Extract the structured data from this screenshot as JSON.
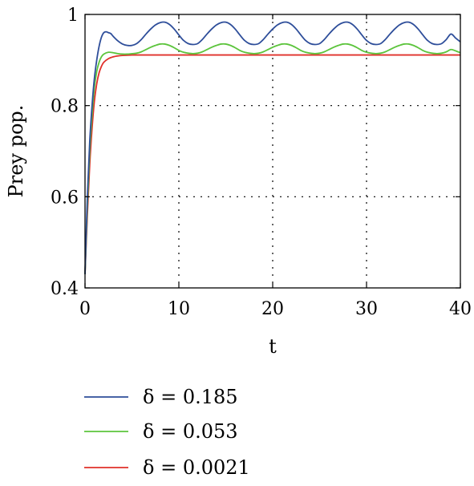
{
  "chart_data": {
    "type": "line",
    "xlabel": "t",
    "ylabel": "Prey pop.",
    "xlim": [
      0,
      40
    ],
    "ylim": [
      0.4,
      1.0
    ],
    "x_ticks": [
      0,
      10,
      20,
      30,
      40
    ],
    "y_ticks": [
      0.4,
      0.6,
      0.8,
      1.0
    ],
    "x_tick_labels": [
      "0",
      "10",
      "20",
      "30",
      "40"
    ],
    "y_tick_labels": [
      "0.4",
      "0.6",
      "0.8",
      "1"
    ],
    "grid": true,
    "legend_position": "bottom",
    "series": [
      {
        "name": "δ = 0.185",
        "color": "#2e4e9a",
        "x": [
          0,
          0.25,
          0.5,
          0.75,
          1.0,
          1.25,
          1.5,
          1.75,
          2.0,
          2.25,
          2.5,
          2.75,
          3.0,
          3.5,
          4.0,
          4.5,
          5.0,
          5.5,
          6.0,
          6.5,
          7.0,
          7.5,
          8.0,
          8.5,
          9.0,
          9.5,
          10.0,
          10.5,
          11.0,
          11.5,
          12.0,
          12.5,
          13.0,
          13.5,
          14.0,
          14.5,
          15.0,
          15.5,
          16.0,
          16.5,
          17.0,
          17.5,
          18.0,
          18.5,
          19.0,
          19.5,
          20.0,
          20.5,
          21.0,
          21.5,
          22.0,
          22.5,
          23.0,
          23.5,
          24.0,
          24.5,
          25.0,
          25.5,
          26.0,
          26.5,
          27.0,
          27.5,
          28.0,
          28.5,
          29.0,
          29.5,
          30.0,
          30.5,
          31.0,
          31.5,
          32.0,
          32.5,
          33.0,
          33.5,
          34.0,
          34.5,
          35.0,
          35.5,
          36.0,
          36.5,
          37.0,
          37.5,
          38.0,
          38.5,
          39.0,
          39.5,
          40.0
        ],
        "y": [
          0.43,
          0.6,
          0.72,
          0.8,
          0.86,
          0.9,
          0.93,
          0.95,
          0.96,
          0.962,
          0.96,
          0.958,
          0.952,
          0.942,
          0.935,
          0.932,
          0.932,
          0.936,
          0.945,
          0.957,
          0.968,
          0.977,
          0.982,
          0.983,
          0.978,
          0.968,
          0.955,
          0.943,
          0.936,
          0.934,
          0.936,
          0.945,
          0.957,
          0.968,
          0.977,
          0.982,
          0.983,
          0.978,
          0.968,
          0.955,
          0.943,
          0.936,
          0.934,
          0.936,
          0.945,
          0.957,
          0.968,
          0.977,
          0.982,
          0.983,
          0.978,
          0.968,
          0.955,
          0.943,
          0.936,
          0.934,
          0.936,
          0.945,
          0.957,
          0.968,
          0.977,
          0.982,
          0.983,
          0.978,
          0.968,
          0.955,
          0.943,
          0.936,
          0.934,
          0.936,
          0.945,
          0.957,
          0.968,
          0.977,
          0.982,
          0.983,
          0.978,
          0.968,
          0.955,
          0.943,
          0.936,
          0.934,
          0.936,
          0.945,
          0.957,
          0.948,
          0.94
        ]
      },
      {
        "name": "δ = 0.053",
        "color": "#5cc43c",
        "x": [
          0,
          0.25,
          0.5,
          0.75,
          1.0,
          1.25,
          1.5,
          1.75,
          2.0,
          2.5,
          3.0,
          3.5,
          4.0,
          4.5,
          5.0,
          5.5,
          6.0,
          6.5,
          7.0,
          7.5,
          8.0,
          8.5,
          9.0,
          9.5,
          10.0,
          10.5,
          11.0,
          11.5,
          12.0,
          12.5,
          13.0,
          13.5,
          14.0,
          14.5,
          15.0,
          15.5,
          16.0,
          16.5,
          17.0,
          17.5,
          18.0,
          18.5,
          19.0,
          19.5,
          20.0,
          20.5,
          21.0,
          21.5,
          22.0,
          22.5,
          23.0,
          23.5,
          24.0,
          24.5,
          25.0,
          25.5,
          26.0,
          26.5,
          27.0,
          27.5,
          28.0,
          28.5,
          29.0,
          29.5,
          30.0,
          30.5,
          31.0,
          31.5,
          32.0,
          32.5,
          33.0,
          33.5,
          34.0,
          34.5,
          35.0,
          35.5,
          36.0,
          36.5,
          37.0,
          37.5,
          38.0,
          38.5,
          39.0,
          39.5,
          40.0
        ],
        "y": [
          0.43,
          0.58,
          0.7,
          0.78,
          0.84,
          0.875,
          0.895,
          0.907,
          0.913,
          0.917,
          0.916,
          0.914,
          0.913,
          0.913,
          0.914,
          0.915,
          0.918,
          0.923,
          0.928,
          0.932,
          0.935,
          0.935,
          0.932,
          0.927,
          0.921,
          0.917,
          0.915,
          0.914,
          0.915,
          0.918,
          0.923,
          0.928,
          0.932,
          0.935,
          0.935,
          0.932,
          0.927,
          0.921,
          0.917,
          0.915,
          0.914,
          0.915,
          0.918,
          0.923,
          0.928,
          0.932,
          0.935,
          0.935,
          0.932,
          0.927,
          0.921,
          0.917,
          0.915,
          0.914,
          0.915,
          0.918,
          0.923,
          0.928,
          0.932,
          0.935,
          0.935,
          0.932,
          0.927,
          0.921,
          0.917,
          0.915,
          0.914,
          0.915,
          0.918,
          0.923,
          0.928,
          0.932,
          0.935,
          0.935,
          0.932,
          0.927,
          0.921,
          0.917,
          0.915,
          0.914,
          0.915,
          0.918,
          0.923,
          0.92,
          0.916
        ]
      },
      {
        "name": "δ = 0.0021",
        "color": "#e0302a",
        "x": [
          0,
          0.25,
          0.5,
          0.75,
          1.0,
          1.25,
          1.5,
          1.75,
          2.0,
          2.5,
          3.0,
          3.5,
          4.0,
          5.0,
          6.0,
          8.0,
          10.0,
          15.0,
          20.0,
          25.0,
          30.0,
          35.0,
          40.0
        ],
        "y": [
          0.43,
          0.56,
          0.67,
          0.75,
          0.81,
          0.848,
          0.872,
          0.886,
          0.895,
          0.903,
          0.907,
          0.909,
          0.91,
          0.911,
          0.911,
          0.911,
          0.911,
          0.911,
          0.911,
          0.911,
          0.911,
          0.911,
          0.911
        ]
      }
    ]
  }
}
